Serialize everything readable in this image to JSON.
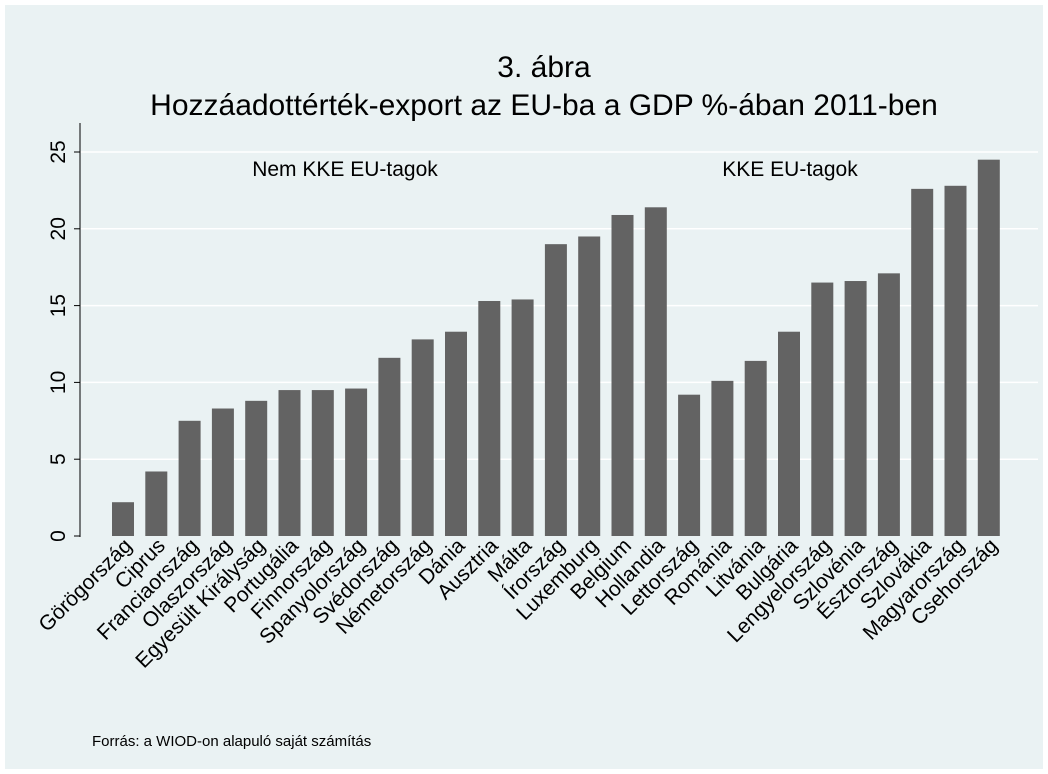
{
  "chart_data": {
    "type": "bar",
    "title": "3. ábra",
    "subtitle": "Hozzáadottérték-export az EU-ba a GDP %-ában 2011-ben",
    "xlabel": "",
    "ylabel": "",
    "ylim": [
      0,
      25
    ],
    "yticks": [
      "0",
      "5",
      "10",
      "15",
      "20",
      "25"
    ],
    "grid": true,
    "colors": {
      "bar": "#636363",
      "background": "#eaf2f3",
      "grid": "#ffffff"
    },
    "categories": [
      "Görögország",
      "Ciprus",
      "Franciaország",
      "Olaszország",
      "Egyesült Királyság",
      "Portugália",
      "Finnország",
      "Spanyolország",
      "Svédország",
      "Németország",
      "Dánia",
      "Ausztria",
      "Málta",
      "Írország",
      "Luxemburg",
      "Belgium",
      "Hollandia",
      "Lettország",
      "Románia",
      "Litvánia",
      "Bulgária",
      "Lengyelország",
      "Szlovénia",
      "Észtország",
      "Szlovákia",
      "Magyarország",
      "Csehország"
    ],
    "values": [
      2.2,
      4.2,
      7.5,
      8.3,
      8.8,
      9.5,
      9.5,
      9.6,
      11.6,
      12.8,
      13.3,
      15.3,
      15.4,
      19.0,
      19.5,
      20.9,
      21.4,
      9.2,
      10.1,
      11.4,
      13.3,
      16.5,
      16.6,
      17.1,
      22.6,
      22.8,
      24.5
    ],
    "annotations": [
      "Nem KKE EU-tagok",
      "KKE EU-tagok"
    ],
    "source_note": "Forrás: a WIOD-on alapuló saját számítás"
  }
}
